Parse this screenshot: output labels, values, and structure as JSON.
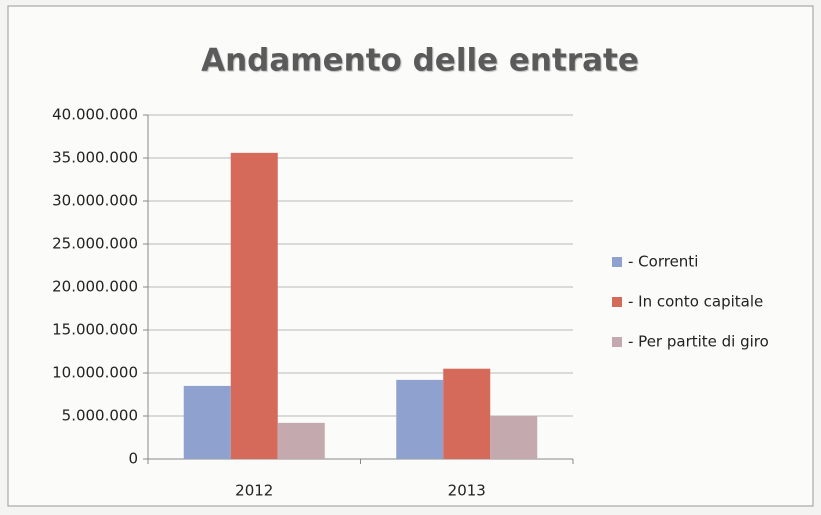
{
  "chart_data": {
    "type": "bar",
    "title": "Andamento delle entrate",
    "categories": [
      "2012",
      "2013"
    ],
    "series": [
      {
        "name": "- Correnti",
        "color": "#8fa2cf",
        "values": [
          8500000,
          9200000
        ]
      },
      {
        "name": "- In conto capitale",
        "color": "#d5695a",
        "values": [
          35600000,
          10500000
        ]
      },
      {
        "name": "- Per partite di giro",
        "color": "#c4aaae",
        "values": [
          4200000,
          5000000
        ]
      }
    ],
    "ylim": [
      0,
      40000000
    ],
    "yticks": [
      0,
      {
        "value": 5000000,
        "label": "5.000.000"
      },
      {
        "value": 10000000,
        "label": "10.000.000"
      },
      {
        "value": 15000000,
        "label": "15.000.000"
      },
      {
        "value": 20000000,
        "label": "20.000.000"
      },
      {
        "value": 25000000,
        "label": "25.000.000"
      },
      {
        "value": 30000000,
        "label": "30.000.000"
      },
      {
        "value": 35000000,
        "label": "35.000.000"
      },
      {
        "value": 40000000,
        "label": "40.000.000"
      }
    ],
    "grid": true,
    "legend": "right"
  }
}
